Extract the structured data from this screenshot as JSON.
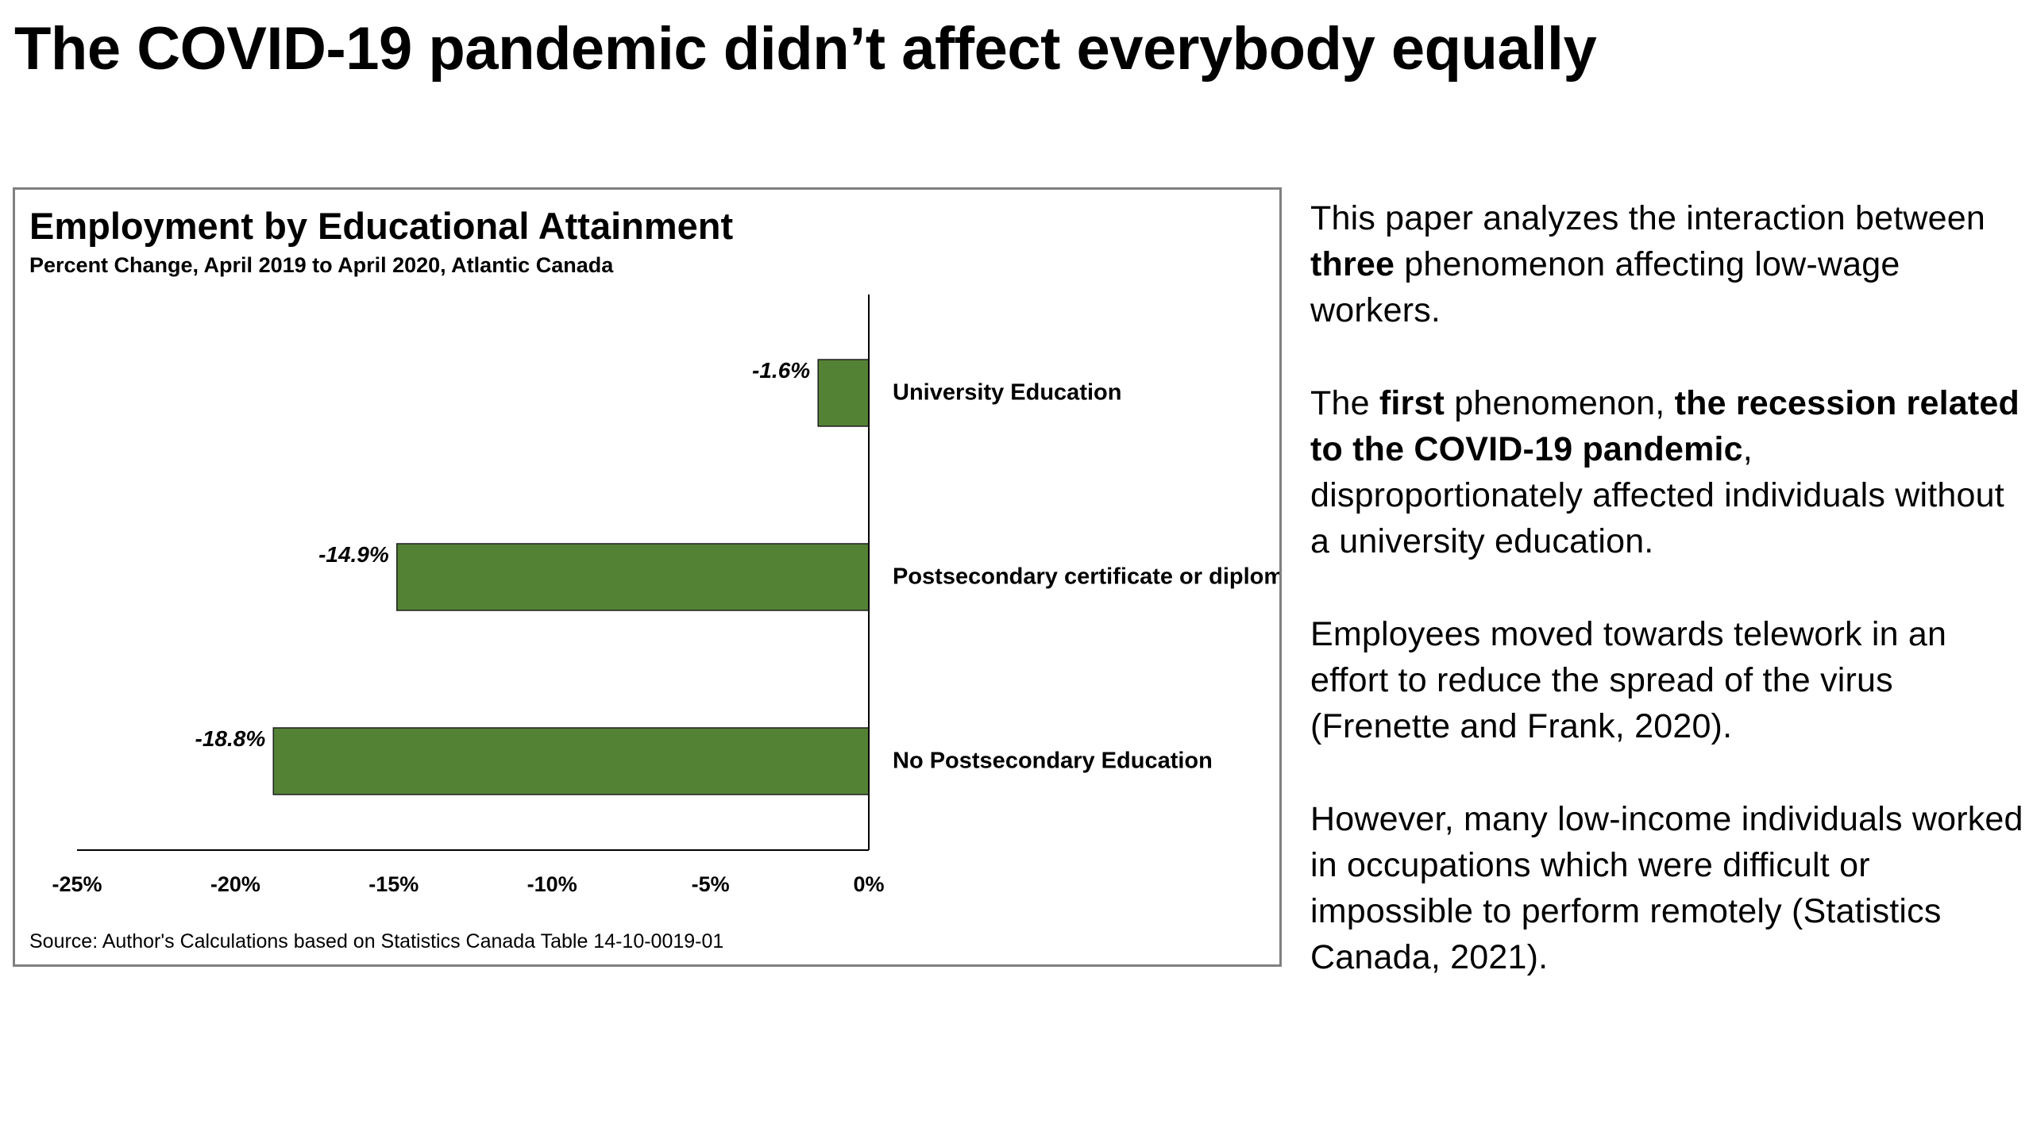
{
  "slide": {
    "title": "The COVID-19 pandemic didn’t affect everybody equally"
  },
  "chart_data": {
    "type": "bar",
    "orientation": "horizontal",
    "title": "Employment by Educational Attainment",
    "subtitle": "Percent Change, April 2019 to April 2020, Atlantic Canada",
    "categories": [
      "University Education",
      "Postsecondary certificate or diploma",
      "No Postsecondary Education"
    ],
    "values": [
      -1.6,
      -14.9,
      -18.8
    ],
    "data_labels": [
      "-1.6%",
      "-14.9%",
      "-18.8%"
    ],
    "xlim": [
      -25,
      0
    ],
    "x_ticks": [
      -25,
      -20,
      -15,
      -10,
      -5,
      0
    ],
    "x_tick_labels": [
      "-25%",
      "-20%",
      "-15%",
      "-10%",
      "-5%",
      "0%"
    ],
    "grid": false,
    "legend": "none",
    "bar_color": "#548235",
    "source": "Source: Author's Calculations based on Statistics Canada Table 14-10-0019-01"
  },
  "body": {
    "p1": [
      "This paper analyzes the interaction between ",
      "three",
      " phenomenon affecting low-wage workers."
    ],
    "p2": [
      "The ",
      "first",
      " phenomenon, ",
      "the recession related to the COVID-19 pandemic",
      ", disproportionately affected individuals without a university education."
    ],
    "p3": "Employees moved towards telework in an effort to reduce the spread of the virus (Frenette and Frank, 2020).",
    "p4": "However, many low-income individuals worked in occupations which were difficult or impossible to perform remotely (Statistics Canada, 2021)."
  }
}
